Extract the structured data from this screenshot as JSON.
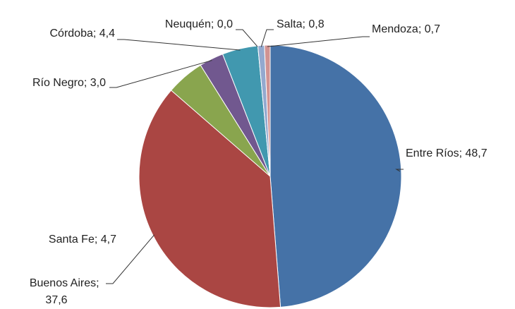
{
  "chart_data": {
    "type": "pie",
    "categories": [
      "Entre Ríos",
      "Buenos Aires",
      "Santa Fe",
      "Río Negro",
      "Córdoba",
      "Neuquén",
      "Salta",
      "Mendoza"
    ],
    "values": [
      48.7,
      37.6,
      4.7,
      3.0,
      4.4,
      0.0,
      0.8,
      0.7
    ],
    "value_labels": [
      "48,7",
      "37,6",
      "4,7",
      "3,0",
      "4,4",
      "0,0",
      "0,8",
      "0,7"
    ],
    "label_separator": "; ",
    "colors": [
      "#4572a7",
      "#aa4643",
      "#89a54e",
      "#71588f",
      "#4198af",
      "#db843d",
      "#93a9cf",
      "#d19392"
    ]
  }
}
